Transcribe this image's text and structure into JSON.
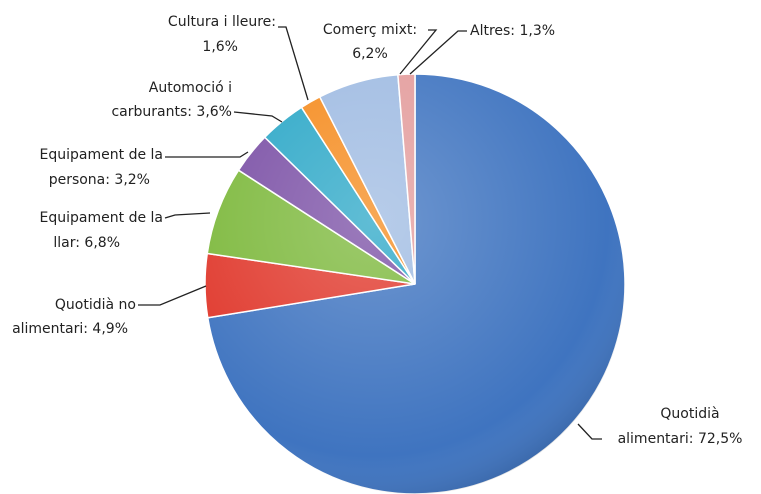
{
  "chart_data": {
    "type": "pie",
    "categories": [
      "Quotidià alimentari",
      "Quotidià no alimentari",
      "Equipament de la llar",
      "Equipament de la persona",
      "Automoció i carburants",
      "Cultura i lleure",
      "Comerç mixt",
      "Altres"
    ],
    "label_lines": [
      [
        "Quotidià",
        "alimentari: 72,5%"
      ],
      [
        "Quotidià no",
        "alimentari: 4,9%"
      ],
      [
        "Equipament de la",
        "llar: 6,8%"
      ],
      [
        "Equipament de la",
        "persona: 3,2%"
      ],
      [
        "Automoció i",
        "carburants: 3,6%"
      ],
      [
        "Cultura i lleure:",
        "1,6%"
      ],
      [
        "Comerç mixt:",
        "6,2%"
      ],
      [
        "Altres: 1,3%"
      ]
    ],
    "values": [
      72.5,
      4.9,
      6.8,
      3.2,
      3.6,
      1.6,
      6.2,
      1.3
    ],
    "colors": [
      "#3f74c0",
      "#e0382c",
      "#7cb83b",
      "#7a4fa5",
      "#2ba7c7",
      "#f58b1e",
      "#9fbbe2",
      "#e39c9c"
    ]
  }
}
